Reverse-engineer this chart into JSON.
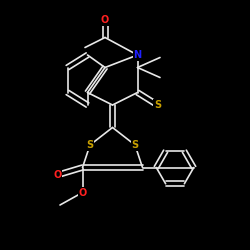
{
  "bg_color": "#000000",
  "bond_color": "#e8e8e8",
  "atom_colors": {
    "O": "#ff2020",
    "N": "#2020ff",
    "S": "#c8a000",
    "C": "#e8e8e8"
  },
  "bond_width": 1.2,
  "figsize": [
    2.5,
    2.5
  ],
  "dpi": 100
}
